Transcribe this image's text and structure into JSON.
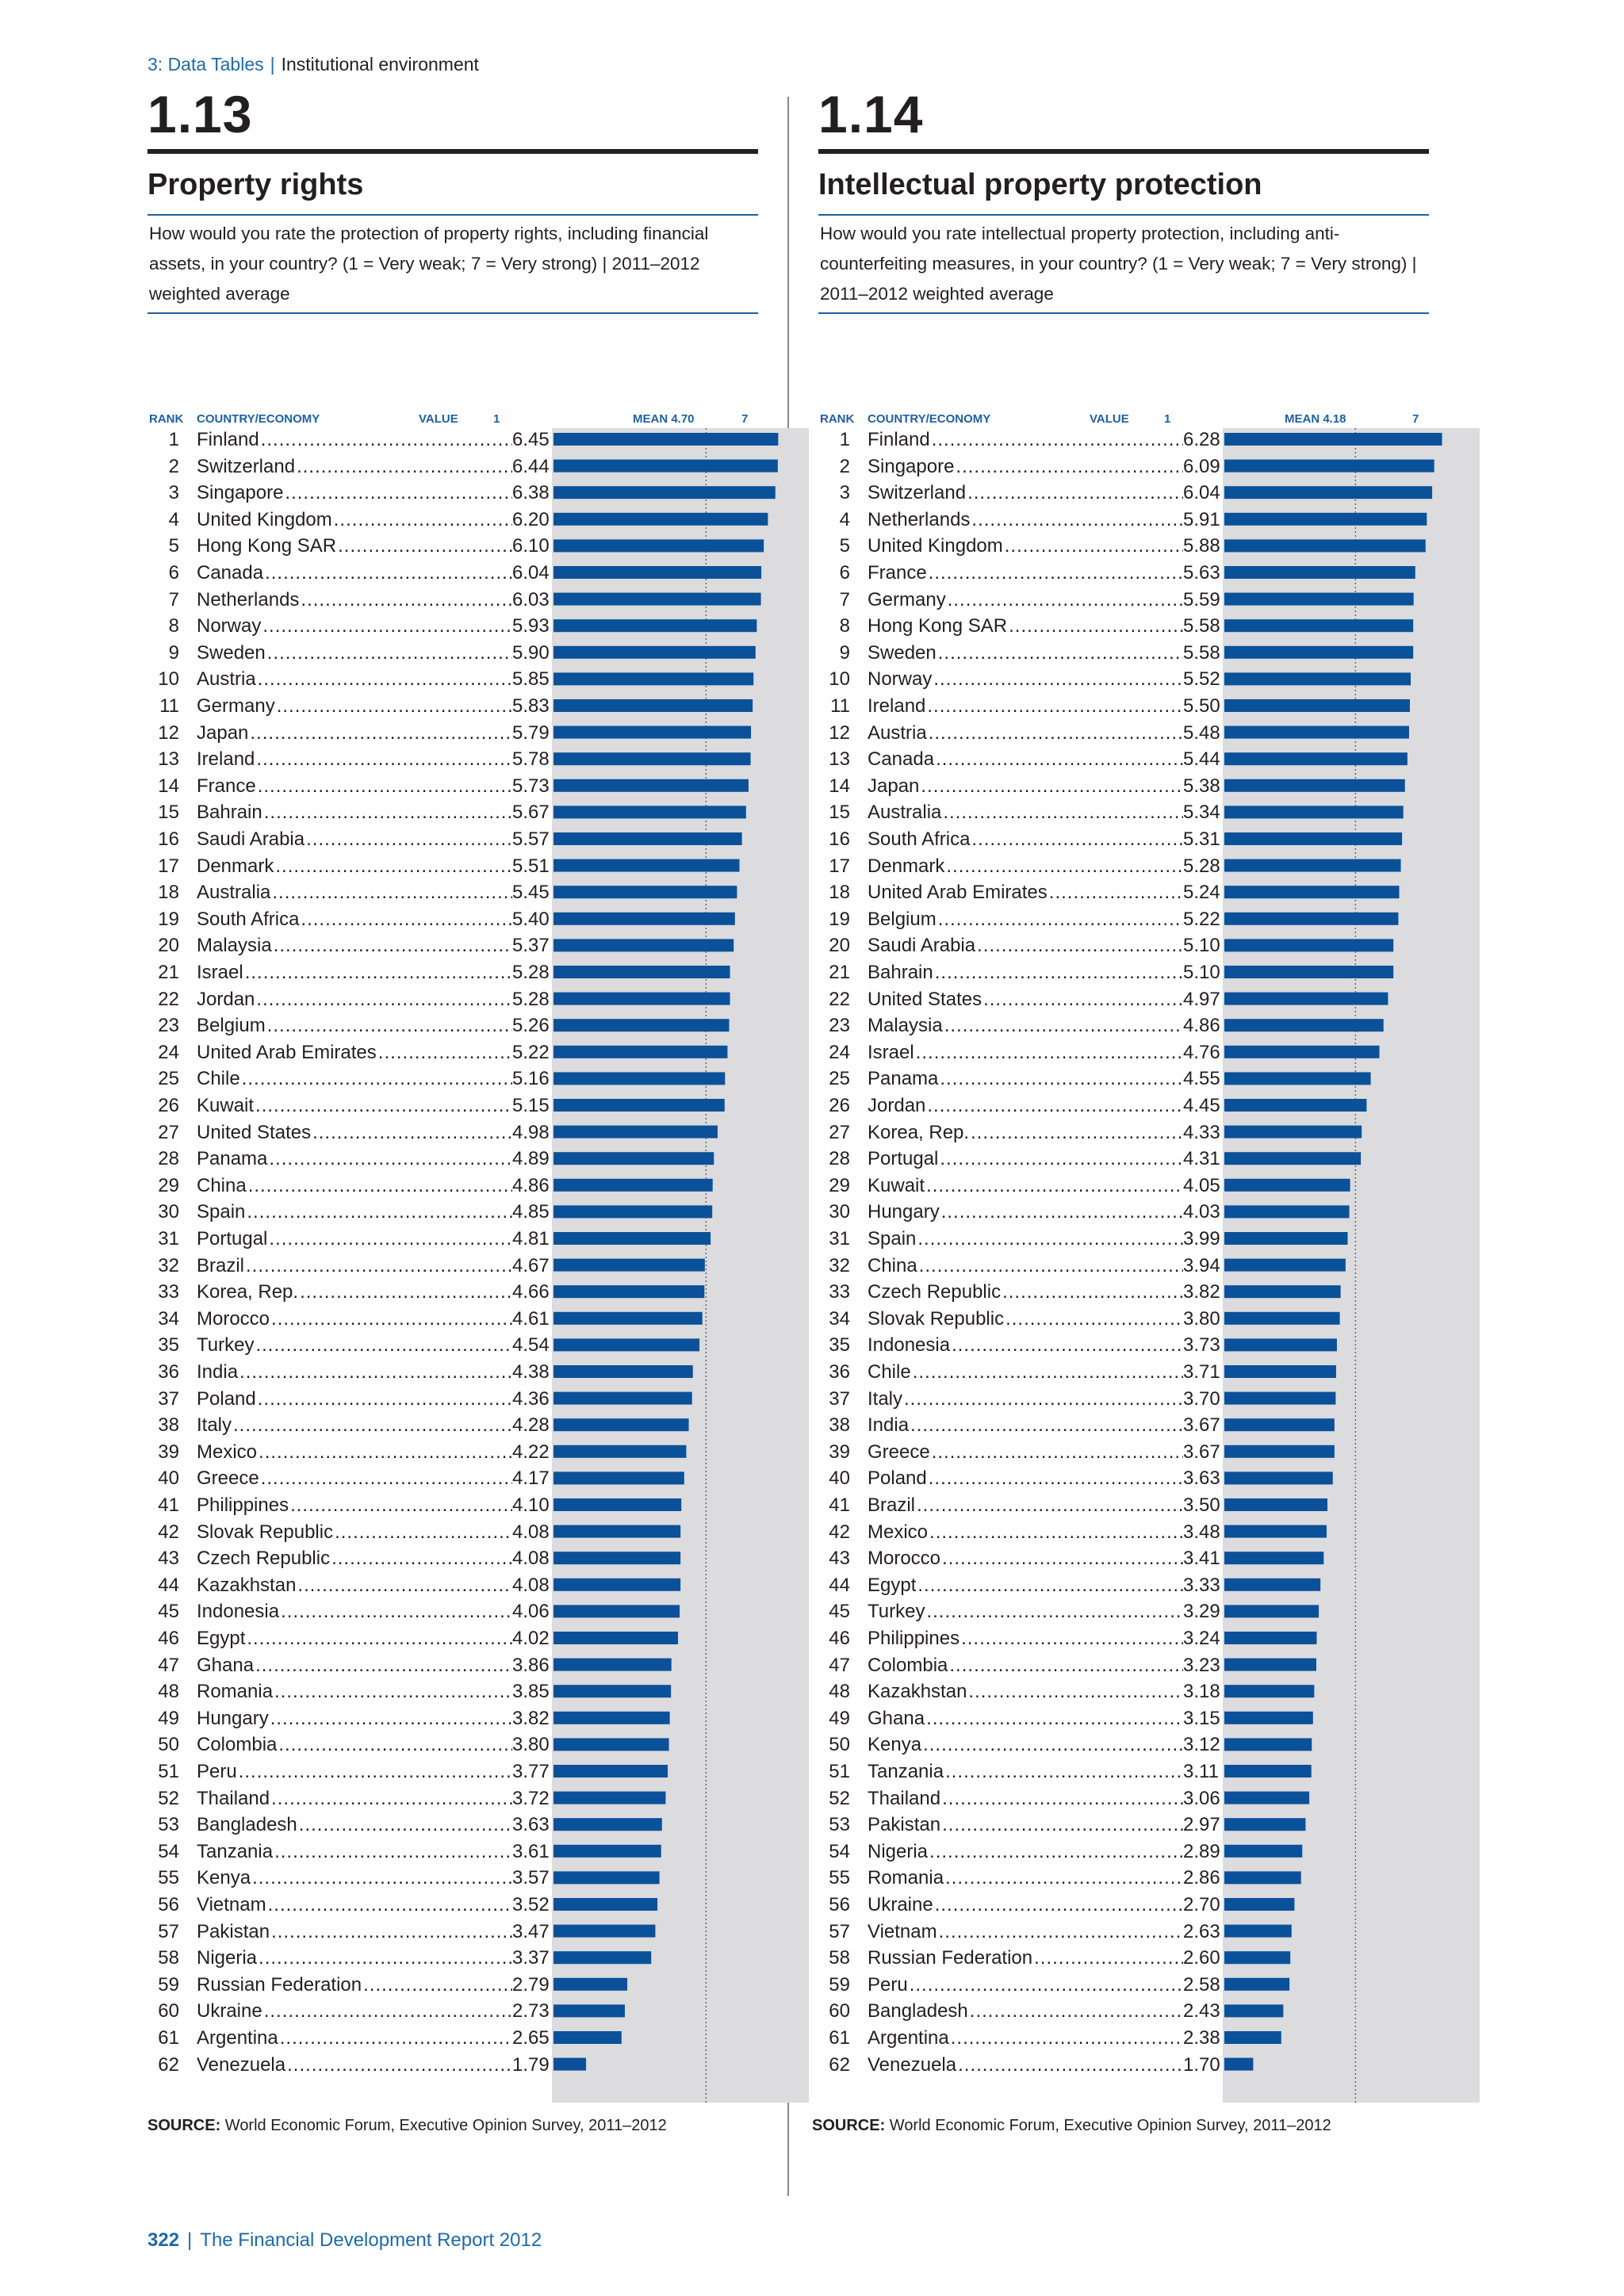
{
  "header": {
    "section": "3: Data Tables",
    "separator": "|",
    "subsection": "Institutional environment"
  },
  "footer": {
    "page": "322",
    "separator": "|",
    "report": "The Financial Development Report 2012"
  },
  "colors": {
    "bar": "#0b5199",
    "chart_bg": "#dcdbde",
    "accent": "#1f6aa8"
  },
  "tables": [
    {
      "number": "1.13",
      "title": "Property rights",
      "question": "How would you rate the protection of property rights, including financial assets, in your country?  (1 = Very weak; 7 = Very strong) | 2011–2012 weighted average",
      "col_rank": "RANK",
      "col_country": "COUNTRY/ECONOMY",
      "col_value": "VALUE",
      "scale_min_label": "1",
      "scale_max_label": "7",
      "mean_label": "MEAN 4.70",
      "source_label": "SOURCE:",
      "source_text": "World Economic Forum, Executive Opinion Survey, 2011–2012"
    },
    {
      "number": "1.14",
      "title": "Intellectual property protection",
      "question": "How would you rate intellectual property protection, including anti-counterfeiting measures, in your country? (1 = Very weak; 7 = Very strong) | 2011–2012 weighted average",
      "col_rank": "RANK",
      "col_country": "COUNTRY/ECONOMY",
      "col_value": "VALUE",
      "scale_min_label": "1",
      "scale_max_label": "7",
      "mean_label": "MEAN 4.18",
      "source_label": "SOURCE:",
      "source_text": "World Economic Forum, Executive Opinion Survey, 2011–2012"
    }
  ],
  "chart_data": [
    {
      "type": "bar",
      "orientation": "horizontal",
      "title": "Property rights",
      "xlim": [
        1,
        7
      ],
      "mean": 4.7,
      "ranks": [
        "1",
        "2",
        "3",
        "4",
        "5",
        "6",
        "7",
        "8",
        "9",
        "10",
        "11",
        "12",
        "13",
        "14",
        "15",
        "16",
        "17",
        "18",
        "19",
        "20",
        "21",
        "22",
        "23",
        "24",
        "25",
        "26",
        "27",
        "28",
        "29",
        "30",
        "31",
        "32",
        "33",
        "34",
        "35",
        "36",
        "37",
        "38",
        "39",
        "40",
        "41",
        "42",
        "43",
        "44",
        "45",
        "46",
        "47",
        "48",
        "49",
        "50",
        "51",
        "52",
        "53",
        "54",
        "55",
        "56",
        "57",
        "58",
        "59",
        "60",
        "61",
        "62"
      ],
      "categories": [
        "Finland",
        "Switzerland",
        "Singapore",
        "United Kingdom",
        "Hong Kong SAR",
        "Canada",
        "Netherlands",
        "Norway",
        "Sweden",
        "Austria",
        "Germany",
        "Japan",
        "Ireland",
        "France",
        "Bahrain",
        "Saudi Arabia",
        "Denmark",
        "Australia",
        "South Africa",
        "Malaysia",
        "Israel",
        "Jordan",
        "Belgium",
        "United Arab Emirates",
        "Chile",
        "Kuwait",
        "United States",
        "Panama",
        "China",
        "Spain",
        "Portugal",
        "Brazil",
        "Korea, Rep.",
        "Morocco",
        "Turkey",
        "India",
        "Poland",
        "Italy",
        "Mexico",
        "Greece",
        "Philippines",
        "Slovak Republic",
        "Czech Republic",
        "Kazakhstan",
        "Indonesia",
        "Egypt",
        "Ghana",
        "Romania",
        "Hungary",
        "Colombia",
        "Peru",
        "Thailand",
        "Bangladesh",
        "Tanzania",
        "Kenya",
        "Vietnam",
        "Pakistan",
        "Nigeria",
        "Russian Federation",
        "Ukraine",
        "Argentina",
        "Venezuela"
      ],
      "labels": [
        "6.45",
        "6.44",
        "6.38",
        "6.20",
        "6.10",
        "6.04",
        "6.03",
        "5.93",
        "5.90",
        "5.85",
        "5.83",
        "5.79",
        "5.78",
        "5.73",
        "5.67",
        "5.57",
        "5.51",
        "5.45",
        "5.40",
        "5.37",
        "5.28",
        "5.28",
        "5.26",
        "5.22",
        "5.16",
        "5.15",
        "4.98",
        "4.89",
        "4.86",
        "4.85",
        "4.81",
        "4.67",
        "4.66",
        "4.61",
        "4.54",
        "4.38",
        "4.36",
        "4.28",
        "4.22",
        "4.17",
        "4.10",
        "4.08",
        "4.08",
        "4.08",
        "4.06",
        "4.02",
        "3.86",
        "3.85",
        "3.82",
        "3.80",
        "3.77",
        "3.72",
        "3.63",
        "3.61",
        "3.57",
        "3.52",
        "3.47",
        "3.37",
        "2.79",
        "2.73",
        "2.65",
        "1.79"
      ],
      "values": [
        6.45,
        6.44,
        6.38,
        6.2,
        6.1,
        6.04,
        6.03,
        5.93,
        5.9,
        5.85,
        5.83,
        5.79,
        5.78,
        5.73,
        5.67,
        5.57,
        5.51,
        5.45,
        5.4,
        5.37,
        5.28,
        5.28,
        5.26,
        5.22,
        5.16,
        5.15,
        4.98,
        4.89,
        4.86,
        4.85,
        4.81,
        4.67,
        4.66,
        4.61,
        4.54,
        4.38,
        4.36,
        4.28,
        4.22,
        4.17,
        4.1,
        4.08,
        4.08,
        4.08,
        4.06,
        4.02,
        3.86,
        3.85,
        3.82,
        3.8,
        3.77,
        3.72,
        3.63,
        3.61,
        3.57,
        3.52,
        3.47,
        3.37,
        2.79,
        2.73,
        2.65,
        1.79
      ]
    },
    {
      "type": "bar",
      "orientation": "horizontal",
      "title": "Intellectual property protection",
      "xlim": [
        1,
        7
      ],
      "mean": 4.18,
      "ranks": [
        "1",
        "2",
        "3",
        "4",
        "5",
        "6",
        "7",
        "8",
        "9",
        "10",
        "11",
        "12",
        "13",
        "14",
        "15",
        "16",
        "17",
        "18",
        "19",
        "20",
        "21",
        "22",
        "23",
        "24",
        "25",
        "26",
        "27",
        "28",
        "29",
        "30",
        "31",
        "32",
        "33",
        "34",
        "35",
        "36",
        "37",
        "38",
        "39",
        "40",
        "41",
        "42",
        "43",
        "44",
        "45",
        "46",
        "47",
        "48",
        "49",
        "50",
        "51",
        "52",
        "53",
        "54",
        "55",
        "56",
        "57",
        "58",
        "59",
        "60",
        "61",
        "62"
      ],
      "categories": [
        "Finland",
        "Singapore",
        "Switzerland",
        "Netherlands",
        "United Kingdom",
        "France",
        "Germany",
        "Hong Kong SAR",
        "Sweden",
        "Norway",
        "Ireland",
        "Austria",
        "Canada",
        "Japan",
        "Australia",
        "South Africa",
        "Denmark",
        "United Arab Emirates",
        "Belgium",
        "Saudi Arabia",
        "Bahrain",
        "United States",
        "Malaysia",
        "Israel",
        "Panama",
        "Jordan",
        "Korea, Rep.",
        "Portugal",
        "Kuwait",
        "Hungary",
        "Spain",
        "China",
        "Czech Republic",
        "Slovak Republic",
        "Indonesia",
        "Chile",
        "Italy",
        "India",
        "Greece",
        "Poland",
        "Brazil",
        "Mexico",
        "Morocco",
        "Egypt",
        "Turkey",
        "Philippines",
        "Colombia",
        "Kazakhstan",
        "Ghana",
        "Kenya",
        "Tanzania",
        "Thailand",
        "Pakistan",
        "Nigeria",
        "Romania",
        "Ukraine",
        "Vietnam",
        "Russian Federation",
        "Peru",
        "Bangladesh",
        "Argentina",
        "Venezuela"
      ],
      "labels": [
        "6.28",
        "6.09",
        "6.04",
        "5.91",
        "5.88",
        "5.63",
        "5.59",
        "5.58",
        "5.58",
        "5.52",
        "5.50",
        "5.48",
        "5.44",
        "5.38",
        "5.34",
        "5.31",
        "5.28",
        "5.24",
        "5.22",
        "5.10",
        "5.10",
        "4.97",
        "4.86",
        "4.76",
        "4.55",
        "4.45",
        "4.33",
        "4.31",
        "4.05",
        "4.03",
        "3.99",
        "3.94",
        "3.82",
        "3.80",
        "3.73",
        "3.71",
        "3.70",
        "3.67",
        "3.67",
        "3.63",
        "3.50",
        "3.48",
        "3.41",
        "3.33",
        "3.29",
        "3.24",
        "3.23",
        "3.18",
        "3.15",
        "3.12",
        "3.11",
        "3.06",
        "2.97",
        "2.89",
        "2.86",
        "2.70",
        "2.63",
        "2.60",
        "2.58",
        "2.43",
        "2.38",
        "1.70"
      ],
      "values": [
        6.28,
        6.09,
        6.04,
        5.91,
        5.88,
        5.63,
        5.59,
        5.58,
        5.58,
        5.52,
        5.5,
        5.48,
        5.44,
        5.38,
        5.34,
        5.31,
        5.28,
        5.24,
        5.22,
        5.1,
        5.1,
        4.97,
        4.86,
        4.76,
        4.55,
        4.45,
        4.33,
        4.31,
        4.05,
        4.03,
        3.99,
        3.94,
        3.82,
        3.8,
        3.73,
        3.71,
        3.7,
        3.67,
        3.67,
        3.63,
        3.5,
        3.48,
        3.41,
        3.33,
        3.29,
        3.24,
        3.23,
        3.18,
        3.15,
        3.12,
        3.11,
        3.06,
        2.97,
        2.89,
        2.86,
        2.7,
        2.63,
        2.6,
        2.58,
        2.43,
        2.38,
        1.7
      ]
    }
  ]
}
